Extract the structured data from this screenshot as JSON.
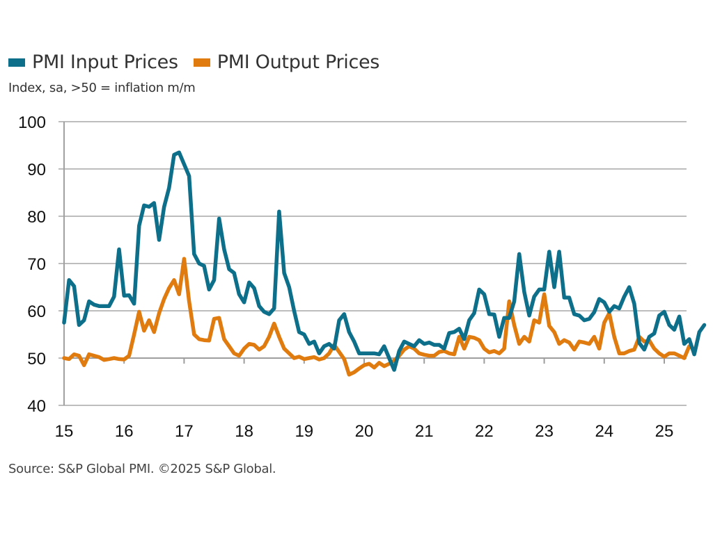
{
  "chart_data": {
    "type": "line",
    "title": "",
    "subtitle": "Index, sa, >50 = inflation m/m",
    "xlabel": "",
    "ylabel": "",
    "ylim": [
      40,
      100
    ],
    "yticks": [
      40,
      50,
      60,
      70,
      80,
      90,
      100
    ],
    "xlim": [
      2015.0,
      2025.33
    ],
    "xticks": [
      {
        "value": 2015,
        "label": "15"
      },
      {
        "value": 2016,
        "label": "16"
      },
      {
        "value": 2017,
        "label": "17"
      },
      {
        "value": 2018,
        "label": "18"
      },
      {
        "value": 2019,
        "label": "19"
      },
      {
        "value": 2020,
        "label": "20"
      },
      {
        "value": 2021,
        "label": "21"
      },
      {
        "value": 2022,
        "label": "22"
      },
      {
        "value": 2023,
        "label": "23"
      },
      {
        "value": 2024,
        "label": "24"
      },
      {
        "value": 2025,
        "label": "25"
      }
    ],
    "grid": true,
    "legend_position": "top-left",
    "x_start": "2015-01",
    "x_frequency": "monthly",
    "series": [
      {
        "name": "PMI Input Prices",
        "color": "#0e6f8a",
        "values": [
          57.5,
          66.5,
          65.2,
          57.0,
          58.0,
          62.0,
          61.3,
          61.0,
          61.0,
          61.0,
          63.0,
          73.0,
          63.2,
          63.3,
          61.5,
          78.0,
          82.3,
          82.0,
          82.8,
          75.0,
          82.0,
          86.0,
          93.0,
          93.5,
          91.0,
          88.5,
          72.0,
          70.0,
          69.5,
          64.5,
          66.5,
          79.5,
          73.0,
          68.8,
          68.0,
          63.5,
          61.8,
          66.0,
          64.8,
          61.0,
          59.8,
          59.3,
          60.5,
          81.0,
          68.0,
          65.0,
          60.0,
          55.5,
          55.0,
          53.0,
          53.5,
          51.0,
          52.5,
          53.0,
          52.0,
          58.0,
          59.3,
          55.5,
          53.5,
          51.0,
          51.0,
          51.0,
          51.0,
          50.8,
          52.5,
          50.0,
          47.5,
          51.5,
          53.5,
          53.0,
          52.5,
          53.8,
          53.0,
          53.3,
          52.8,
          52.8,
          52.0,
          55.3,
          55.5,
          56.2,
          54.0,
          58.0,
          59.5,
          64.5,
          63.5,
          59.3,
          59.2,
          54.5,
          58.5,
          58.5,
          62.0,
          72.0,
          64.0,
          59.0,
          63.0,
          64.5,
          64.5,
          72.5,
          65.0,
          72.5,
          62.8,
          62.8,
          59.3,
          59.0,
          58.0,
          58.3,
          59.7,
          62.5,
          61.8,
          59.8,
          61.0,
          60.5,
          63.0,
          65.0,
          61.5,
          53.2,
          51.8,
          54.5,
          55.2,
          59.0,
          59.8,
          57.0,
          56.0,
          58.8,
          53.0,
          54.0,
          50.8,
          55.5,
          57.0
        ]
      },
      {
        "name": "PMI Output Prices",
        "color": "#e07b10",
        "values": [
          50.0,
          49.8,
          50.8,
          50.5,
          48.5,
          50.8,
          50.5,
          50.2,
          49.6,
          49.8,
          50.0,
          49.8,
          49.7,
          50.5,
          55.0,
          59.8,
          55.8,
          58.0,
          55.5,
          59.5,
          62.5,
          64.8,
          66.5,
          63.5,
          71.0,
          62.0,
          55.0,
          54.0,
          53.8,
          53.7,
          58.3,
          58.5,
          54.0,
          52.5,
          51.0,
          50.5,
          52.0,
          53.0,
          52.8,
          51.8,
          52.5,
          54.5,
          57.3,
          54.5,
          52.0,
          51.0,
          50.0,
          50.3,
          49.8,
          50.0,
          50.2,
          49.7,
          50.0,
          51.0,
          52.8,
          51.3,
          49.8,
          46.5,
          47.0,
          47.8,
          48.5,
          48.8,
          48.0,
          49.0,
          48.3,
          48.8,
          49.5,
          50.5,
          51.8,
          52.5,
          52.0,
          51.0,
          50.7,
          50.5,
          50.5,
          51.3,
          51.5,
          51.0,
          50.8,
          54.5,
          52.0,
          54.5,
          54.3,
          53.8,
          52.0,
          51.2,
          51.5,
          51.0,
          52.0,
          62.0,
          57.0,
          53.0,
          54.5,
          53.5,
          58.0,
          57.5,
          63.5,
          56.8,
          55.5,
          53.0,
          53.8,
          53.3,
          51.8,
          53.5,
          53.3,
          53.0,
          54.5,
          52.0,
          57.5,
          59.5,
          54.5,
          51.0,
          51.0,
          51.5,
          51.8,
          54.5,
          53.5,
          53.7,
          52.0,
          51.0,
          50.3,
          51.0,
          51.0,
          50.5,
          50.0,
          52.5
        ]
      }
    ]
  },
  "legend": {
    "items": [
      {
        "label": "PMI Input Prices",
        "color": "#0e6f8a"
      },
      {
        "label": "PMI Output Prices",
        "color": "#e07b10"
      }
    ]
  },
  "footer": {
    "source": "Source: S&P Global PMI. ©2025 S&P Global."
  }
}
